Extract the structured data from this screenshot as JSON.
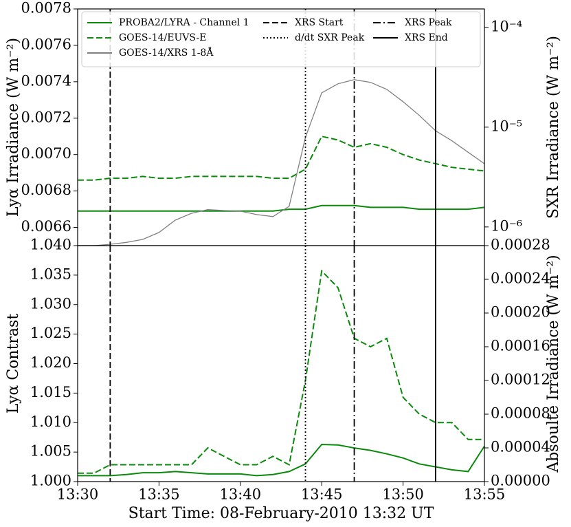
{
  "chart_data": [
    {
      "type": "line",
      "ylabel": "Lyα Irradiance (W m⁻²)",
      "y2label": "SXR Irradiance (W m⁻²)",
      "x": [
        "13:30",
        "13:31",
        "13:32",
        "13:33",
        "13:34",
        "13:35",
        "13:36",
        "13:37",
        "13:38",
        "13:39",
        "13:40",
        "13:41",
        "13:42",
        "13:43",
        "13:44",
        "13:45",
        "13:46",
        "13:47",
        "13:48",
        "13:49",
        "13:50",
        "13:51",
        "13:52",
        "13:53",
        "13:54",
        "13:55"
      ],
      "series": [
        {
          "name": "PROBA2/LYRA - Channel 1",
          "color": "#0a8a0a",
          "linestyle": "solid",
          "values": [
            0.00669,
            0.00669,
            0.00669,
            0.00669,
            0.00669,
            0.00669,
            0.00669,
            0.00669,
            0.00669,
            0.00669,
            0.00669,
            0.00669,
            0.00669,
            0.0067,
            0.0067,
            0.00672,
            0.00672,
            0.00672,
            0.00671,
            0.00671,
            0.00671,
            0.0067,
            0.0067,
            0.0067,
            0.0067,
            0.00671
          ]
        },
        {
          "name": "GOES-14/EUVS-E",
          "color": "#0a8a0a",
          "linestyle": "dashed",
          "values": [
            0.00686,
            0.00686,
            0.00687,
            0.00687,
            0.00688,
            0.00687,
            0.00687,
            0.00688,
            0.00688,
            0.00688,
            0.00688,
            0.00688,
            0.00687,
            0.00687,
            0.00692,
            0.0071,
            0.00708,
            0.00704,
            0.00706,
            0.00704,
            0.007,
            0.00697,
            0.00695,
            0.00693,
            0.00692,
            0.00691
          ]
        },
        {
          "name": "GOES-14/XRS 1-8Å",
          "color": "#808080",
          "linestyle": "solid",
          "axis": "y2",
          "values": [
            6.5e-07,
            6.5e-07,
            6.7e-07,
            7e-07,
            7.5e-07,
            8.8e-07,
            1.17e-06,
            1.37e-06,
            1.49e-06,
            1.46e-06,
            1.44e-06,
            1.33e-06,
            1.27e-06,
            1.61e-06,
            7.9e-06,
            2.21e-05,
            2.72e-05,
            2.99e-05,
            2.81e-05,
            2.39e-05,
            1.8e-05,
            1.31e-05,
            9.2e-06,
            7.3e-06,
            5.6e-06,
            4.3e-06
          ]
        }
      ],
      "vlines": [
        {
          "name": "XRS Start",
          "x": "13:32",
          "linestyle": "dashed"
        },
        {
          "name": "d/dt SXR Peak",
          "x": "13:44",
          "linestyle": "dotted"
        },
        {
          "name": "XRS Peak",
          "x": "13:47",
          "linestyle": "dashdot"
        },
        {
          "name": "XRS End",
          "x": "13:52",
          "linestyle": "solid"
        }
      ],
      "xlim": [
        "13:30",
        "13:55"
      ],
      "ylim": [
        0.0065,
        0.0078
      ],
      "yticks": [
        0.0066,
        0.0068,
        {
          "value": 0.007,
          "label": "0.0070"
        },
        0.0072,
        0.0074,
        0.0076,
        0.0078
      ],
      "y2lim": [
        6.5e-07,
        0.000153
      ],
      "y2scale": "log",
      "y2ticks": [
        {
          "value": 1e-06,
          "label": "10⁻⁶"
        },
        {
          "value": 1e-05,
          "label": "10⁻⁵"
        },
        {
          "value": 0.0001,
          "label": "10⁻⁴"
        }
      ],
      "legend": "upper center"
    },
    {
      "type": "line",
      "xlabel": "Start Time: 08-February-2010 13:32 UT",
      "ylabel": "Lyα Contrast",
      "y2label": "Absoulte Irradiance (W m⁻²)",
      "x": [
        "13:30",
        "13:31",
        "13:32",
        "13:33",
        "13:34",
        "13:35",
        "13:36",
        "13:37",
        "13:38",
        "13:39",
        "13:40",
        "13:41",
        "13:42",
        "13:43",
        "13:44",
        "13:45",
        "13:46",
        "13:47",
        "13:48",
        "13:49",
        "13:50",
        "13:51",
        "13:52",
        "13:53",
        "13:54",
        "13:55"
      ],
      "series": [
        {
          "color": "#0a8a0a",
          "linestyle": "solid",
          "values": [
            1.001,
            1.001,
            1.001,
            1.0012,
            1.0015,
            1.0015,
            1.0017,
            1.0015,
            1.0013,
            1.0013,
            1.0013,
            1.001,
            1.0012,
            1.0017,
            1.003,
            1.0063,
            1.0062,
            1.0057,
            1.0053,
            1.0047,
            1.004,
            1.003,
            1.0025,
            1.002,
            1.0017,
            1.006
          ]
        },
        {
          "color": "#0a8a0a",
          "linestyle": "dashed",
          "axis": "y2",
          "values": [
            1e-05,
            1e-05,
            2e-05,
            2e-05,
            2e-05,
            2e-05,
            2e-05,
            2e-05,
            4e-05,
            3e-05,
            2e-05,
            2e-05,
            3e-05,
            2e-05,
            0.00012,
            0.00025,
            0.00023,
            0.00017,
            0.00016,
            0.00017,
            0.0001,
            8e-05,
            7e-05,
            7e-05,
            5e-05,
            5e-05
          ]
        }
      ],
      "xlim": [
        "13:30",
        "13:55"
      ],
      "xticks": [
        "13:30",
        "13:35",
        "13:40",
        "13:45",
        "13:50",
        "13:55"
      ],
      "ylim": [
        1,
        1.04
      ],
      "yticks": [
        {
          "value": 1,
          "label": "1.000"
        },
        1.005,
        {
          "value": 1.01,
          "label": "1.010"
        },
        1.015,
        {
          "value": 1.02,
          "label": "1.020"
        },
        1.025,
        {
          "value": 1.03,
          "label": "1.030"
        },
        1.035,
        {
          "value": 1.04,
          "label": "1.040"
        }
      ],
      "y2lim": [
        0,
        0.00028
      ],
      "y2ticks": [
        {
          "value": 0,
          "label": "0.00000"
        },
        {
          "value": 4e-05,
          "label": "0.00004"
        },
        {
          "value": 8e-05,
          "label": "0.00008"
        },
        {
          "value": 0.00012,
          "label": "0.00012"
        },
        {
          "value": 0.00016,
          "label": "0.00016"
        },
        {
          "value": 0.0002,
          "label": "0.00020"
        },
        {
          "value": 0.00024,
          "label": "0.00024"
        },
        {
          "value": 0.00028,
          "label": "0.00028"
        }
      ]
    }
  ]
}
